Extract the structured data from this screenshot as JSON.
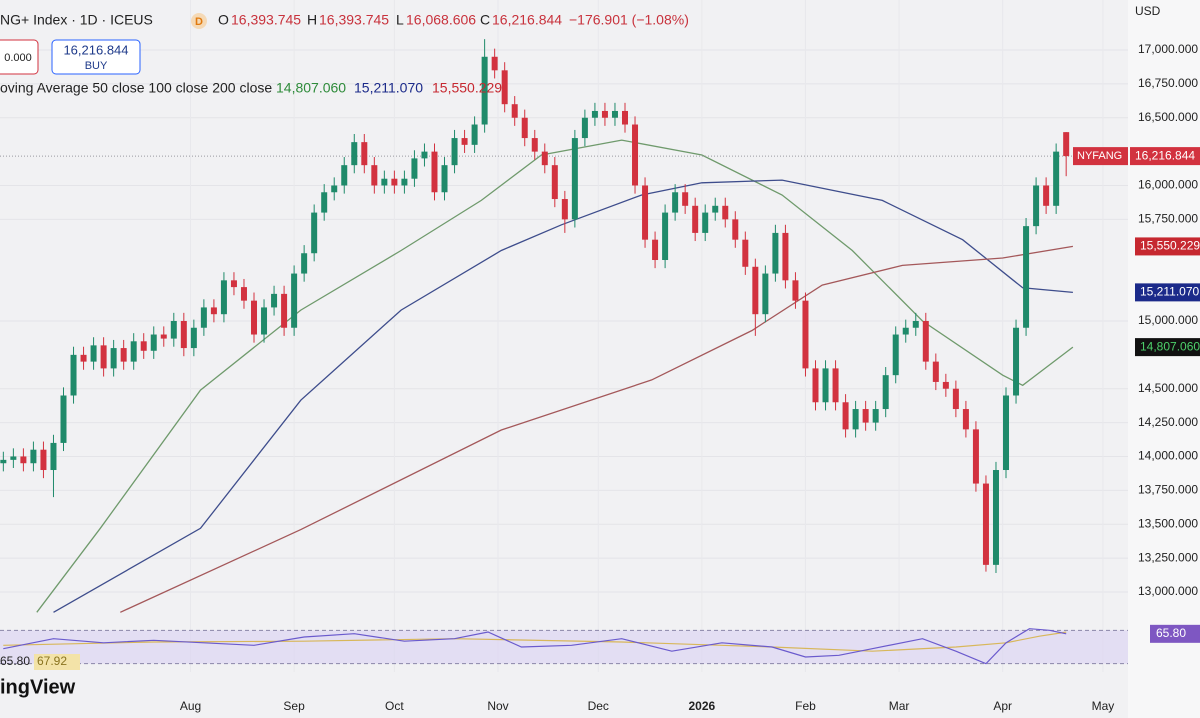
{
  "header": {
    "symbol": "NG+ Index · 1D · ICEUS",
    "badge": "D",
    "o_label": "O",
    "o": "16,393.745",
    "h_label": "H",
    "h": "16,393.745",
    "l_label": "L",
    "l": "16,068.606",
    "c_label": "C",
    "change": "−176.901 (−1.08%)",
    "sell": "0.000",
    "buy": "BUY",
    "indicator": "oving Average 50 close 100 close 200 close",
    "currency": "USD",
    "watermark": "ingView"
  },
  "chart_data": {
    "type": "candlestick",
    "ticker_tag": "NYFANG",
    "last_label": "16,216.844",
    "up_color": "#1f8a6a",
    "down_color": "#d2323f",
    "grid": true,
    "xlim": [
      -26,
      311.5
    ],
    "ylim": [
      12793,
      17369
    ],
    "xticks": [
      {
        "value": 31,
        "label": "Aug"
      },
      {
        "value": 62,
        "label": "Sep"
      },
      {
        "value": 92,
        "label": "Oct"
      },
      {
        "value": 123,
        "label": "Nov"
      },
      {
        "value": 153,
        "label": "Dec"
      },
      {
        "value": 184,
        "label": "2026"
      },
      {
        "value": 215,
        "label": "Feb"
      },
      {
        "value": 243,
        "label": "Mar"
      },
      {
        "value": 274,
        "label": "Apr"
      },
      {
        "value": 304,
        "label": "May"
      }
    ],
    "yticks": [
      {
        "value": 17000,
        "label": "17,000.000"
      },
      {
        "value": 16750,
        "label": "16,750.000"
      },
      {
        "value": 16500,
        "label": "16,500.000"
      },
      {
        "value": 16000,
        "label": "16,000.000"
      },
      {
        "value": 15750,
        "label": "15,750.000"
      },
      {
        "value": 15000,
        "label": "15,000.000"
      },
      {
        "value": 14500,
        "label": "14,500.000"
      },
      {
        "value": 14250,
        "label": "14,250.000"
      },
      {
        "value": 14000,
        "label": "14,000.000"
      },
      {
        "value": 13750,
        "label": "13,750.000"
      },
      {
        "value": 13500,
        "label": "13,500.000"
      },
      {
        "value": 13250,
        "label": "13,250.000"
      },
      {
        "value": 13000,
        "label": "13,000.000"
      }
    ],
    "x": [
      -25,
      -22,
      -19,
      -16,
      -13,
      -10,
      -7,
      -4,
      -1,
      2,
      5,
      8,
      11,
      14,
      17,
      20,
      23,
      26,
      29,
      32,
      35,
      38,
      41,
      44,
      47,
      50,
      53,
      56,
      59,
      62,
      65,
      68,
      71,
      74,
      77,
      80,
      83,
      86,
      89,
      92,
      95,
      98,
      101,
      104,
      107,
      110,
      113,
      116,
      119,
      122,
      125,
      128,
      131,
      134,
      137,
      140,
      143,
      146,
      149,
      152,
      155,
      158,
      161,
      164,
      167,
      170,
      173,
      176,
      179,
      182,
      185,
      188,
      191,
      194,
      197,
      200,
      203,
      206,
      209,
      212,
      215,
      218,
      221,
      224,
      227,
      230,
      233,
      236,
      239,
      242,
      245,
      248,
      251,
      254,
      257,
      260,
      263,
      266,
      269,
      272,
      275,
      278,
      281,
      284,
      287,
      290,
      293
    ],
    "open": [
      13950,
      13975,
      14000,
      13950,
      14050,
      13900,
      14100,
      14450,
      14750,
      14700,
      14820,
      14650,
      14800,
      14700,
      14850,
      14780,
      14900,
      14870,
      15000,
      14800,
      14950,
      15100,
      15050,
      15300,
      15250,
      15150,
      14900,
      15100,
      15200,
      14950,
      15350,
      15500,
      15800,
      15950,
      16000,
      16150,
      16320,
      16150,
      16000,
      16050,
      16000,
      16050,
      16200,
      16250,
      15950,
      16150,
      16350,
      16300,
      16450,
      16950,
      16850,
      16600,
      16500,
      16350,
      16250,
      16150,
      15900,
      15750,
      16350,
      16500,
      16550,
      16500,
      16550,
      16450,
      16000,
      15600,
      15450,
      15800,
      15950,
      15850,
      15650,
      15800,
      15850,
      15750,
      15600,
      15400,
      15050,
      15350,
      15650,
      15300,
      15150,
      14650,
      14400,
      14650,
      14400,
      14200,
      14350,
      14250,
      14350,
      14600,
      14900,
      14950,
      15000,
      14700,
      14550,
      14500,
      14350,
      14200,
      13800,
      13200,
      13900,
      14450,
      14950,
      15700,
      16000,
      15850,
      16393.745
    ],
    "high": [
      14035,
      14060,
      14060,
      14110,
      14110,
      14160,
      14510,
      14810,
      14810,
      14880,
      14880,
      14860,
      14860,
      14910,
      14910,
      14960,
      14960,
      15060,
      15060,
      15010,
      15160,
      15160,
      15360,
      15360,
      15310,
      15210,
      15160,
      15260,
      15260,
      15410,
      15560,
      15860,
      16010,
      16060,
      16210,
      16380,
      16380,
      16210,
      16110,
      16110,
      16110,
      16260,
      16310,
      16310,
      16210,
      16410,
      16410,
      16510,
      17080,
      17010,
      16910,
      16660,
      16560,
      16410,
      16310,
      16210,
      15960,
      16410,
      16560,
      16610,
      16610,
      16610,
      16610,
      16510,
      16060,
      15660,
      15860,
      16010,
      16010,
      15910,
      15860,
      15910,
      15910,
      15810,
      15660,
      15460,
      15410,
      15710,
      15710,
      15360,
      15210,
      14710,
      14710,
      14710,
      14460,
      14410,
      14410,
      14410,
      14660,
      14960,
      15010,
      15060,
      15060,
      14760,
      14610,
      14560,
      14410,
      14260,
      13860,
      13960,
      14510,
      15010,
      15760,
      16060,
      16060,
      16310,
      16393.745
    ],
    "low": [
      13890,
      13915,
      13890,
      13890,
      13840,
      13700,
      14040,
      14390,
      14640,
      14640,
      14590,
      14590,
      14640,
      14640,
      14720,
      14720,
      14810,
      14810,
      14740,
      14740,
      14890,
      14990,
      14990,
      15190,
      15090,
      14840,
      14840,
      15040,
      14890,
      14890,
      15290,
      15440,
      15740,
      15890,
      15940,
      16090,
      16090,
      15940,
      15940,
      15940,
      15940,
      15990,
      16140,
      15890,
      15890,
      16090,
      16240,
      16240,
      16390,
      16790,
      16540,
      16440,
      16290,
      16190,
      16090,
      15840,
      15650,
      15690,
      16290,
      16440,
      16440,
      16440,
      16390,
      15940,
      15540,
      15390,
      15390,
      15740,
      15790,
      15590,
      15590,
      15740,
      15690,
      15540,
      15340,
      14890,
      14990,
      15290,
      15240,
      15090,
      14590,
      14340,
      14340,
      14340,
      14140,
      14140,
      14190,
      14190,
      14290,
      14540,
      14840,
      14890,
      14640,
      14490,
      14440,
      14290,
      14140,
      13740,
      13150,
      13140,
      13840,
      14390,
      14890,
      15640,
      15790,
      15790,
      16068.606
    ],
    "close": [
      13975,
      14000,
      13950,
      14050,
      13900,
      14100,
      14450,
      14750,
      14700,
      14820,
      14650,
      14800,
      14700,
      14850,
      14780,
      14900,
      14870,
      15000,
      14800,
      14950,
      15100,
      15050,
      15300,
      15250,
      15150,
      14900,
      15100,
      15200,
      14950,
      15350,
      15500,
      15800,
      15950,
      16000,
      16150,
      16320,
      16150,
      16000,
      16050,
      16000,
      16050,
      16200,
      16250,
      15950,
      16150,
      16350,
      16300,
      16450,
      16950,
      16850,
      16600,
      16500,
      16350,
      16250,
      16150,
      15900,
      15750,
      16350,
      16500,
      16550,
      16500,
      16550,
      16450,
      16000,
      15600,
      15450,
      15800,
      15950,
      15850,
      15650,
      15800,
      15850,
      15750,
      15600,
      15400,
      15050,
      15350,
      15650,
      15300,
      15150,
      14650,
      14400,
      14650,
      14400,
      14200,
      14350,
      14250,
      14350,
      14600,
      14900,
      14950,
      15000,
      14700,
      14550,
      14500,
      14350,
      14200,
      13800,
      13200,
      13900,
      14450,
      14950,
      15700,
      16000,
      15850,
      16250,
      16216.844
    ],
    "lines": [
      {
        "color": "#6f9a6c",
        "tag_bg": "#111111",
        "tag_fg": "#4cd06a",
        "last_label": "14,807.060",
        "x": [
          -15,
          4,
          34,
          64,
          94,
          118,
          136,
          160,
          184,
          208,
          229,
          250,
          274,
          280,
          295
        ],
        "values": [
          12850,
          13470,
          14490,
          15080,
          15520,
          15890,
          16225,
          16335,
          16225,
          15930,
          15520,
          15000,
          14600,
          14525,
          14807.06
        ]
      },
      {
        "color": "#3e4d8c",
        "tag_bg": "#1b2a8a",
        "tag_fg": "#ffffff",
        "last_label": "15,211.070",
        "x": [
          -10,
          34,
          64,
          94,
          124,
          142,
          166,
          184,
          208,
          238,
          262,
          280,
          295
        ],
        "values": [
          12850,
          13470,
          14415,
          15080,
          15520,
          15710,
          15930,
          16020,
          16040,
          15890,
          15600,
          15245,
          15211.07
        ]
      },
      {
        "color": "#a4585a",
        "tag_bg": "#c62830",
        "tag_fg": "#ffffff",
        "last_label": "15,550.229",
        "x": [
          10,
          64,
          124,
          169,
          199,
          220,
          244,
          274,
          295
        ],
        "values": [
          12850,
          13460,
          14195,
          14565,
          14930,
          15265,
          15410,
          15465,
          15550.229
        ]
      }
    ],
    "rsi": {
      "ylim": [
        20,
        80
      ],
      "levels": [
        30,
        70
      ],
      "color": "#6a5acd",
      "band": "#ddd6f2",
      "ma_color": "#d8b75a",
      "value_label": "65.80",
      "ma_label": "67.92",
      "x": [
        -25,
        -10,
        5,
        20,
        35,
        50,
        65,
        80,
        95,
        110,
        120,
        130,
        145,
        160,
        175,
        190,
        205,
        215,
        225,
        235,
        250,
        260,
        269,
        275,
        282,
        288,
        293
      ],
      "values": [
        48,
        60,
        55,
        58,
        55,
        52,
        62,
        66,
        57,
        60,
        68,
        50,
        52,
        60,
        45,
        55,
        50,
        38,
        40,
        48,
        60,
        45,
        30,
        55,
        72,
        70,
        65.8
      ],
      "ma_x": [
        -25,
        20,
        65,
        110,
        160,
        205,
        235,
        260,
        275,
        285,
        293
      ],
      "ma_values": [
        52,
        56,
        57,
        60,
        56,
        50,
        45,
        50,
        55,
        63,
        67.92
      ]
    }
  }
}
